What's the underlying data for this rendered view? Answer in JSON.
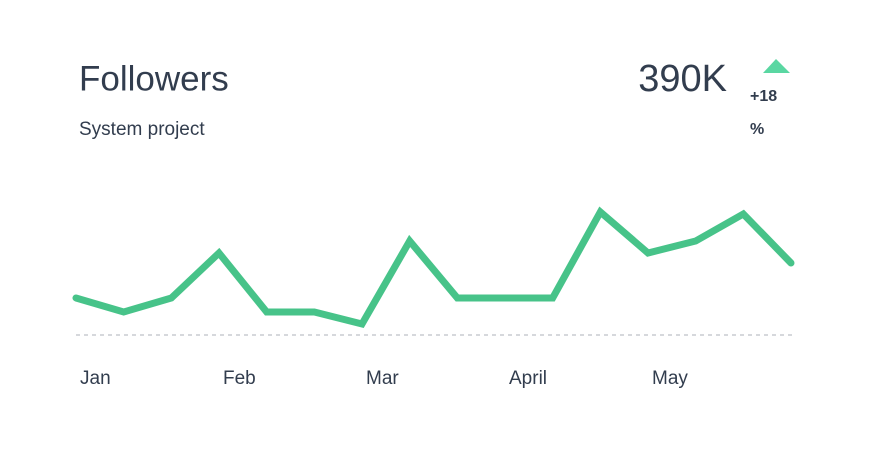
{
  "chart_data": {
    "type": "line",
    "title": "Followers",
    "subtitle": "System project",
    "stat": {
      "value": "390K",
      "change": "+18 %"
    },
    "trend_color": "#5ad7a2",
    "categories": [
      "Jan",
      null,
      null,
      "Feb",
      null,
      null,
      "Mar",
      null,
      null,
      "April",
      null,
      null,
      "May",
      null,
      null,
      null
    ],
    "values": [
      37,
      23,
      37,
      82,
      23,
      23,
      11,
      94,
      37,
      37,
      37,
      123,
      82,
      94,
      121,
      72
    ],
    "color": "#47c389",
    "ylim": [
      0,
      130
    ]
  }
}
